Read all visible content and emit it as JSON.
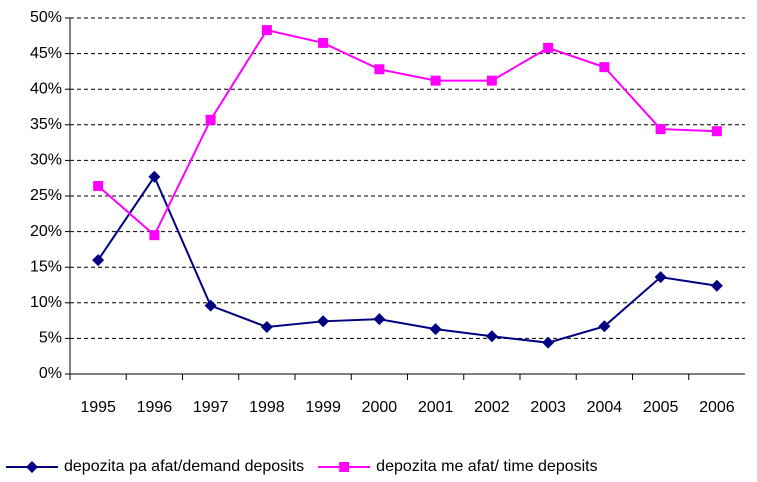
{
  "chart_data": {
    "type": "line",
    "categories": [
      "1995",
      "1996",
      "1997",
      "1998",
      "1999",
      "2000",
      "2001",
      "2002",
      "2003",
      "2004",
      "2005",
      "2006"
    ],
    "series": [
      {
        "name": "depozita pa afat/demand deposits",
        "color": "#000080",
        "marker": "diamond",
        "values": [
          16.0,
          27.7,
          9.6,
          6.6,
          7.4,
          7.7,
          6.3,
          5.3,
          4.4,
          6.7,
          13.6,
          12.4
        ]
      },
      {
        "name": "depozita me afat/ time deposits",
        "color": "#ff00ff",
        "marker": "square",
        "values": [
          26.4,
          19.5,
          35.7,
          48.3,
          46.5,
          42.8,
          41.2,
          41.2,
          45.8,
          43.1,
          34.4,
          34.1
        ]
      }
    ],
    "ylim": [
      0,
      50
    ],
    "yticks": [
      {
        "value": 0,
        "label": "0%"
      },
      {
        "value": 5,
        "label": "5%"
      },
      {
        "value": 10,
        "label": "10%"
      },
      {
        "value": 15,
        "label": "15%"
      },
      {
        "value": 20,
        "label": "20%"
      },
      {
        "value": 25,
        "label": "25%"
      },
      {
        "value": 30,
        "label": "30%"
      },
      {
        "value": 35,
        "label": "35%"
      },
      {
        "value": 40,
        "label": "40%"
      },
      {
        "value": 45,
        "label": "45%"
      },
      {
        "value": 50,
        "label": "50%"
      }
    ],
    "grid": true,
    "legend": "bottom"
  }
}
